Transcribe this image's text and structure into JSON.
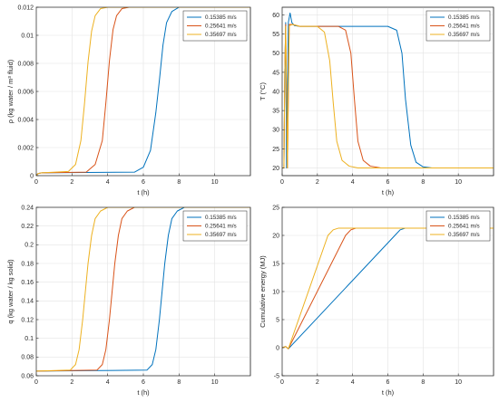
{
  "colors": {
    "s1": "#0072BD",
    "s2": "#D95319",
    "s3": "#EDB120"
  },
  "chart_data": [
    {
      "type": "line",
      "xlabel": "t (h)",
      "ylabel": "ρ (kg water / m³ fluid)",
      "xlim": [
        0,
        12
      ],
      "ylim": [
        0,
        0.012
      ],
      "xticks": [
        0,
        2,
        4,
        6,
        8,
        10
      ],
      "yticks": [
        0,
        0.002,
        0.004,
        0.006,
        0.008,
        0.01,
        0.012
      ],
      "ytick_labels": [
        "0",
        "0.002",
        "0.004",
        "0.006",
        "0.008",
        "0.01",
        "0.012"
      ],
      "grid": true,
      "legend_position": "top-right",
      "series": [
        {
          "name": "0.15385 m/s",
          "color_key": "s1",
          "x": [
            0,
            0.1,
            0.3,
            5.5,
            6.0,
            6.4,
            6.7,
            6.9,
            7.1,
            7.3,
            7.6,
            8.0,
            12
          ],
          "y": [
            0,
            0.00015,
            0.0002,
            0.00025,
            0.0006,
            0.0018,
            0.0045,
            0.0068,
            0.0093,
            0.0109,
            0.0117,
            0.012,
            0.012
          ]
        },
        {
          "name": "0.25641 m/s",
          "color_key": "s2",
          "x": [
            0,
            0.1,
            0.3,
            2.8,
            3.3,
            3.7,
            3.9,
            4.1,
            4.3,
            4.5,
            4.8,
            5.2,
            12
          ],
          "y": [
            0,
            0.00015,
            0.0002,
            0.00025,
            0.0008,
            0.0025,
            0.0052,
            0.0082,
            0.0104,
            0.0114,
            0.0119,
            0.012,
            0.012
          ]
        },
        {
          "name": "0.35697 m/s",
          "color_key": "s3",
          "x": [
            0,
            0.1,
            0.3,
            1.8,
            2.2,
            2.5,
            2.7,
            2.9,
            3.1,
            3.3,
            3.6,
            4.0,
            12
          ],
          "y": [
            0,
            0.00015,
            0.0002,
            0.0003,
            0.0008,
            0.0025,
            0.0051,
            0.0081,
            0.0103,
            0.0114,
            0.0119,
            0.012,
            0.012
          ]
        }
      ]
    },
    {
      "type": "line",
      "xlabel": "t (h)",
      "ylabel": "T (°C)",
      "xlim": [
        0,
        12
      ],
      "ylim": [
        18,
        62
      ],
      "xticks": [
        0,
        2,
        4,
        6,
        8,
        10
      ],
      "yticks": [
        20,
        25,
        30,
        35,
        40,
        45,
        50,
        55,
        60
      ],
      "ytick_labels": [
        "20",
        "25",
        "30",
        "35",
        "40",
        "45",
        "50",
        "55",
        "60"
      ],
      "grid": true,
      "legend_position": "top-right",
      "series": [
        {
          "name": "0.15385 m/s",
          "color_key": "s1",
          "x": [
            0,
            0.1,
            0.15,
            0.2,
            0.25,
            0.35,
            0.45,
            0.55,
            0.7,
            1.0,
            6.0,
            6.5,
            6.8,
            7.0,
            7.3,
            7.6,
            8.0,
            8.5,
            12
          ],
          "y": [
            20,
            20,
            45,
            58,
            20,
            58,
            60.5,
            58,
            57.2,
            57,
            57,
            56,
            50,
            38,
            26,
            21.5,
            20.3,
            20,
            20
          ]
        },
        {
          "name": "0.25641 m/s",
          "color_key": "s2",
          "x": [
            0,
            0.1,
            0.15,
            0.2,
            0.3,
            0.4,
            0.6,
            1.0,
            3.2,
            3.6,
            3.9,
            4.1,
            4.3,
            4.6,
            5.0,
            5.6,
            12
          ],
          "y": [
            20,
            20,
            45,
            57.5,
            20,
            57.5,
            57.5,
            57,
            57,
            56,
            50,
            38,
            27,
            22,
            20.5,
            20,
            20
          ]
        },
        {
          "name": "0.35697 m/s",
          "color_key": "s3",
          "x": [
            0,
            0.1,
            0.15,
            0.2,
            0.3,
            0.4,
            0.6,
            1.0,
            2.0,
            2.4,
            2.7,
            2.9,
            3.1,
            3.4,
            3.8,
            4.3,
            12
          ],
          "y": [
            20,
            20,
            45,
            57,
            20,
            57.2,
            57.5,
            57,
            57,
            55.5,
            48,
            37,
            27,
            22,
            20.5,
            20,
            20
          ]
        }
      ]
    },
    {
      "type": "line",
      "xlabel": "t (h)",
      "ylabel": "q (kg water / kg solid)",
      "xlim": [
        0,
        12
      ],
      "ylim": [
        0.06,
        0.24
      ],
      "xticks": [
        0,
        2,
        4,
        6,
        8,
        10
      ],
      "yticks": [
        0.06,
        0.08,
        0.1,
        0.12,
        0.14,
        0.16,
        0.18,
        0.2,
        0.22,
        0.24
      ],
      "ytick_labels": [
        "0.06",
        "0.08",
        "0.1",
        "0.12",
        "0.14",
        "0.16",
        "0.18",
        "0.2",
        "0.22",
        "0.24"
      ],
      "grid": true,
      "legend_position": "top-right",
      "series": [
        {
          "name": "0.15385 m/s",
          "color_key": "s1",
          "x": [
            0,
            6.2,
            6.5,
            6.7,
            6.9,
            7.05,
            7.2,
            7.4,
            7.6,
            7.9,
            8.3,
            12
          ],
          "y": [
            0.065,
            0.066,
            0.072,
            0.088,
            0.12,
            0.15,
            0.18,
            0.21,
            0.228,
            0.236,
            0.24,
            0.24
          ]
        },
        {
          "name": "0.25641 m/s",
          "color_key": "s2",
          "x": [
            0,
            3.4,
            3.7,
            3.9,
            4.1,
            4.25,
            4.4,
            4.6,
            4.8,
            5.1,
            5.5,
            12
          ],
          "y": [
            0.065,
            0.066,
            0.072,
            0.088,
            0.12,
            0.15,
            0.18,
            0.21,
            0.228,
            0.236,
            0.24,
            0.24
          ]
        },
        {
          "name": "0.35697 m/s",
          "color_key": "s3",
          "x": [
            0,
            1.9,
            2.2,
            2.4,
            2.6,
            2.75,
            2.9,
            3.1,
            3.3,
            3.6,
            4.0,
            12
          ],
          "y": [
            0.065,
            0.066,
            0.072,
            0.088,
            0.12,
            0.15,
            0.18,
            0.21,
            0.228,
            0.236,
            0.24,
            0.24
          ]
        }
      ]
    },
    {
      "type": "line",
      "xlabel": "t (h)",
      "ylabel": "Cumulative energy (MJ)",
      "xlim": [
        0,
        12
      ],
      "ylim": [
        -5,
        25
      ],
      "xticks": [
        0,
        2,
        4,
        6,
        8,
        10
      ],
      "yticks": [
        -5,
        0,
        5,
        10,
        15,
        20,
        25
      ],
      "ytick_labels": [
        "-5",
        "0",
        "5",
        "10",
        "15",
        "20",
        "25"
      ],
      "grid": true,
      "legend_position": "top-right",
      "series": [
        {
          "name": "0.15385 m/s",
          "color_key": "s1",
          "x": [
            0,
            0.2,
            0.35,
            6.4,
            6.7,
            7.0,
            12
          ],
          "y": [
            0,
            0.2,
            -0.2,
            20.0,
            21.0,
            21.3,
            21.3
          ]
        },
        {
          "name": "0.25641 m/s",
          "color_key": "s2",
          "x": [
            0,
            0.2,
            0.35,
            3.6,
            3.9,
            4.2,
            12
          ],
          "y": [
            0,
            0.2,
            -0.2,
            20.0,
            21.0,
            21.3,
            21.3
          ]
        },
        {
          "name": "0.35697 m/s",
          "color_key": "s3",
          "x": [
            0,
            0.2,
            0.35,
            2.6,
            2.9,
            3.2,
            12
          ],
          "y": [
            0,
            0.2,
            -0.2,
            20.0,
            21.0,
            21.3,
            21.3
          ]
        }
      ]
    }
  ]
}
